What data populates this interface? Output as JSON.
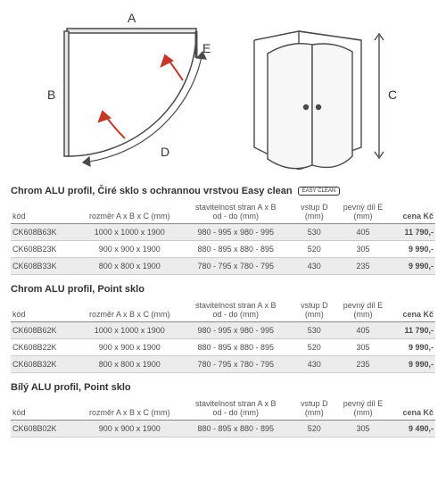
{
  "diagram_labels": {
    "A": "A",
    "B": "B",
    "C": "C",
    "D": "D",
    "E": "E"
  },
  "sections": [
    {
      "title": "Chrom ALU profil, Čiré sklo s ochrannou vrstvou Easy clean",
      "badge": "EASY CLEAN",
      "headers": [
        "kód",
        "rozměr A x B x C (mm)",
        "stavitelnost stran A x B\nod - do (mm)",
        "vstup D\n(mm)",
        "pevný díl E\n(mm)",
        "cena Kč"
      ],
      "rows": [
        {
          "shaded": true,
          "cells": [
            "CK608B63K",
            "1000 x 1000 x 1900",
            "980 - 995 x 980 - 995",
            "530",
            "405",
            "11 790,-"
          ]
        },
        {
          "shaded": false,
          "cells": [
            "CK608B23K",
            "900 x 900 x 1900",
            "880 - 895 x 880 - 895",
            "520",
            "305",
            "9 990,-"
          ]
        },
        {
          "shaded": true,
          "cells": [
            "CK608B33K",
            "800 x 800 x 1900",
            "780 - 795 x 780 - 795",
            "430",
            "235",
            "9 990,-"
          ]
        }
      ]
    },
    {
      "title": "Chrom ALU profil, Point sklo",
      "badge": null,
      "headers": [
        "kód",
        "rozměr A x B x C (mm)",
        "stavitelnost stran A x B\nod - do (mm)",
        "vstup D\n(mm)",
        "pevný díl E\n(mm)",
        "cena Kč"
      ],
      "rows": [
        {
          "shaded": true,
          "cells": [
            "CK608B62K",
            "1000 x 1000 x 1900",
            "980 - 995 x 980 - 995",
            "530",
            "405",
            "11 790,-"
          ]
        },
        {
          "shaded": false,
          "cells": [
            "CK608B22K",
            "900 x 900 x 1900",
            "880 - 895 x 880 - 895",
            "520",
            "305",
            "9 990,-"
          ]
        },
        {
          "shaded": true,
          "cells": [
            "CK608B32K",
            "800 x 800 x 1900",
            "780 - 795 x 780 - 795",
            "430",
            "235",
            "9 990,-"
          ]
        }
      ]
    },
    {
      "title": "Bílý ALU profil, Point sklo",
      "badge": null,
      "headers": [
        "kód",
        "rozměr A x B x C (mm)",
        "stavitelnost stran A x B\nod - do (mm)",
        "vstup D\n(mm)",
        "pevný díl E\n(mm)",
        "cena Kč"
      ],
      "rows": [
        {
          "shaded": true,
          "cells": [
            "CK608B02K",
            "900 x 900 x 1900",
            "880 - 895 x 880 - 895",
            "520",
            "305",
            "9 490,-"
          ]
        }
      ]
    }
  ],
  "styling": {
    "col_widths": [
      "16%",
      "24%",
      "26%",
      "11%",
      "12%",
      "11%"
    ],
    "diagram_stroke": "#4a4a4a",
    "arrow_color": "#c0392b"
  }
}
